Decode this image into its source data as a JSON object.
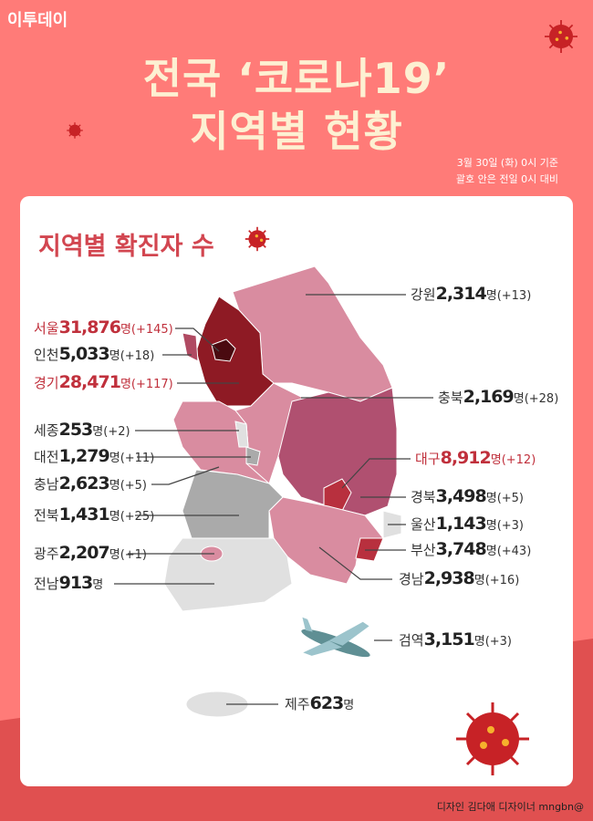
{
  "brand": "이투데이",
  "title": {
    "line1": "전국 ‘코로나19’",
    "line2": "지역별 현황"
  },
  "basis": {
    "date": "3월 30일 (화) 0시 기준",
    "note": "괄호 안은 전일 0시 대비"
  },
  "subtitle": "지역별 확진자 수",
  "unit": "명",
  "colors": {
    "background": "#ff7b78",
    "accent": "#d24650",
    "highest": "#8e1a24"
  },
  "regions": [
    {
      "name": "서울",
      "count": "31,876",
      "delta": "(+145)",
      "highlight": true
    },
    {
      "name": "인천",
      "count": "5,033",
      "delta": "(+18)"
    },
    {
      "name": "경기",
      "count": "28,471",
      "delta": "(+117)",
      "highlight": true
    },
    {
      "name": "세종",
      "count": "253",
      "delta": "(+2)"
    },
    {
      "name": "대전",
      "count": "1,279",
      "delta": "(+11)"
    },
    {
      "name": "충남",
      "count": "2,623",
      "delta": "(+5)"
    },
    {
      "name": "전북",
      "count": "1,431",
      "delta": "(+25)"
    },
    {
      "name": "광주",
      "count": "2,207",
      "delta": "(+1)"
    },
    {
      "name": "전남",
      "count": "913",
      "delta": ""
    },
    {
      "name": "강원",
      "count": "2,314",
      "delta": "(+13)"
    },
    {
      "name": "충북",
      "count": "2,169",
      "delta": "(+28)"
    },
    {
      "name": "대구",
      "count": "8,912",
      "delta": "(+12)",
      "highlight": true
    },
    {
      "name": "경북",
      "count": "3,498",
      "delta": "(+5)"
    },
    {
      "name": "울산",
      "count": "1,143",
      "delta": "(+3)"
    },
    {
      "name": "부산",
      "count": "3,748",
      "delta": "(+43)"
    },
    {
      "name": "경남",
      "count": "2,938",
      "delta": "(+16)"
    },
    {
      "name": "검역",
      "count": "3,151",
      "delta": "(+3)"
    },
    {
      "name": "제주",
      "count": "623",
      "delta": ""
    }
  ],
  "icons": [
    "virus-icon",
    "airplane-icon"
  ],
  "credit": "디자인 김다애 디자이너 mngbn@"
}
